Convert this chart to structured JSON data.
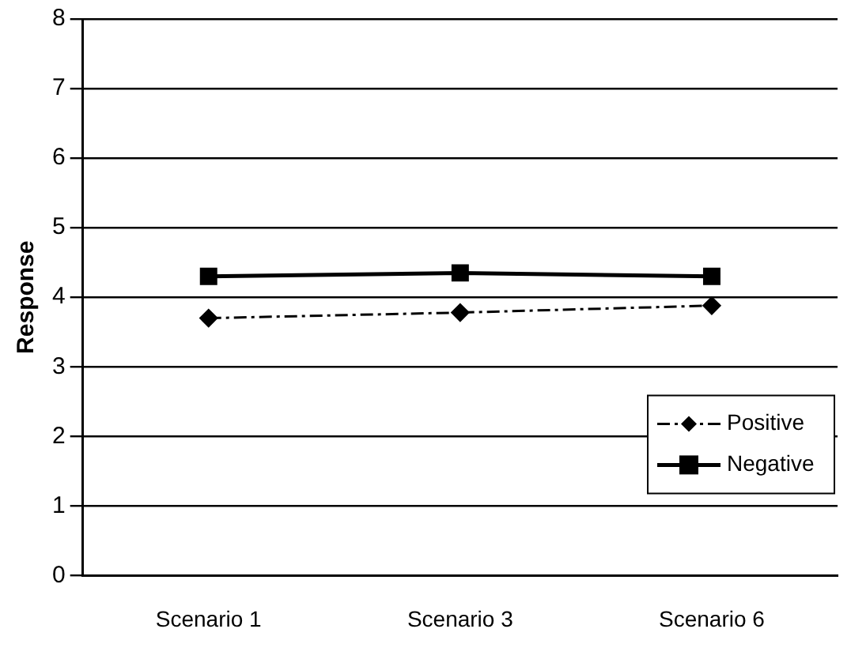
{
  "chart_data": {
    "type": "line",
    "ylabel": "Response",
    "categories": [
      "Scenario 1",
      "Scenario 3",
      "Scenario 6"
    ],
    "series": [
      {
        "name": "Positive",
        "color": "#000000",
        "values": [
          3.7,
          3.78,
          3.88
        ],
        "marker": "diamond",
        "line_style": "dashdot"
      },
      {
        "name": "Negative",
        "color": "#000000",
        "values": [
          4.3,
          4.35,
          4.3
        ],
        "marker": "square",
        "line_style": "solid"
      }
    ],
    "ylim": [
      0,
      8
    ],
    "yticks": [
      0,
      1,
      2,
      3,
      4,
      5,
      6,
      7,
      8
    ],
    "grid": "y",
    "legend": "bottom right"
  }
}
